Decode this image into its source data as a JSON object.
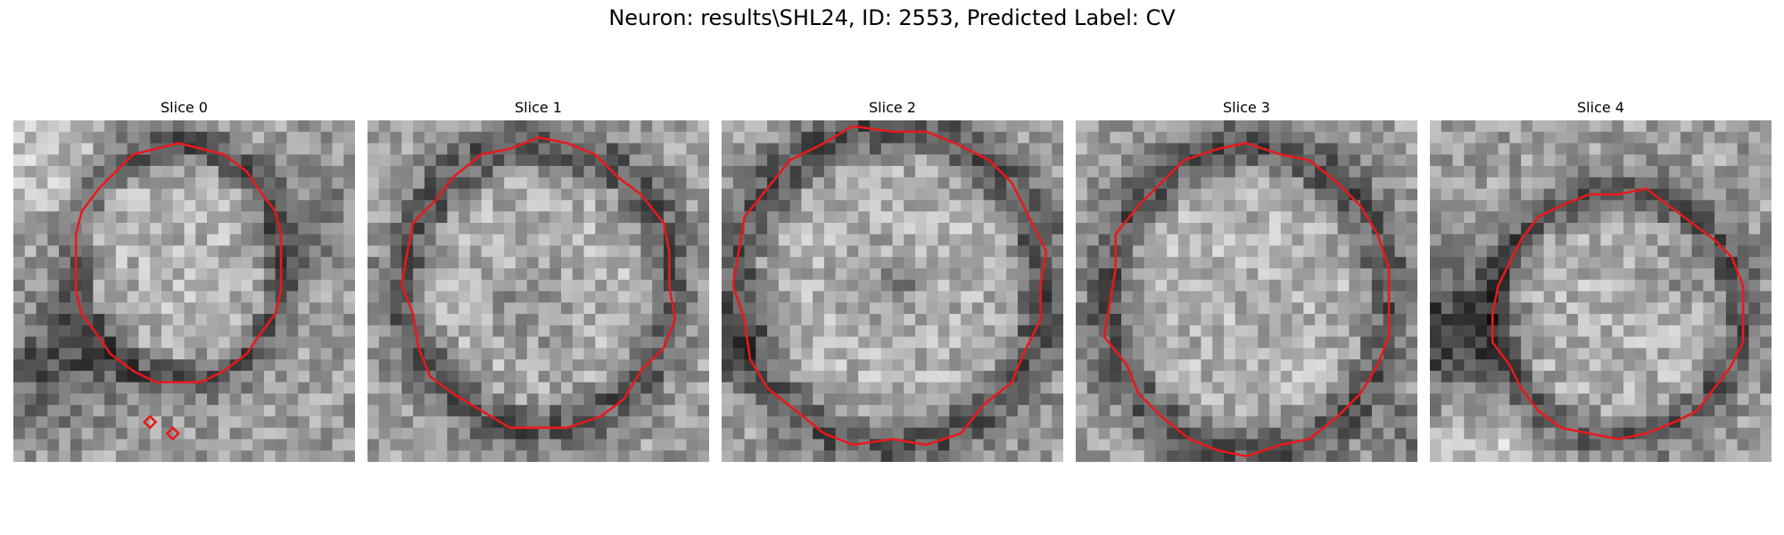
{
  "figure": {
    "title": "Neuron: results\\SHL24, ID: 2553, Predicted Label: CV"
  },
  "contour_color": "#e8191c",
  "colormap": "grayscale",
  "panels": [
    {
      "title": "Slice 0"
    },
    {
      "title": "Slice 1"
    },
    {
      "title": "Slice 2"
    },
    {
      "title": "Slice 3"
    },
    {
      "title": "Slice 4"
    }
  ]
}
